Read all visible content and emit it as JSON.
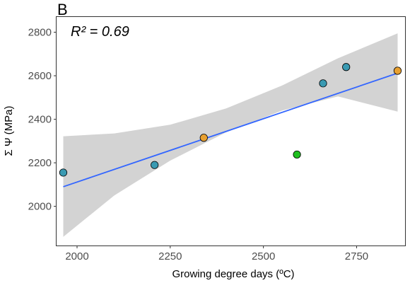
{
  "panel_label": "B",
  "chart_data": {
    "type": "scatter",
    "title": "",
    "xlabel": "Growing degree days (ºC)",
    "ylabel": "Σ Ψ (MPa)",
    "xlim": [
      1945,
      2880
    ],
    "ylim": [
      1820,
      2870
    ],
    "x_ticks": [
      2000,
      2250,
      2500,
      2750
    ],
    "y_ticks": [
      2000,
      2200,
      2400,
      2600,
      2800
    ],
    "grid": false,
    "legend": "none",
    "annotation": "R² = 0.69",
    "points": [
      {
        "x": 1963,
        "y": 2155,
        "color": "#3a9ab2"
      },
      {
        "x": 2208,
        "y": 2190,
        "color": "#3a9ab2"
      },
      {
        "x": 2340,
        "y": 2315,
        "color": "#e8a030"
      },
      {
        "x": 2590,
        "y": 2238,
        "color": "#1fbf1f"
      },
      {
        "x": 2660,
        "y": 2565,
        "color": "#3a9ab2"
      },
      {
        "x": 2722,
        "y": 2640,
        "color": "#3a9ab2"
      },
      {
        "x": 2860,
        "y": 2623,
        "color": "#e8a030"
      }
    ],
    "fit_line": {
      "x": [
        1963,
        2860
      ],
      "y": [
        2090,
        2612
      ],
      "color": "#3366ff"
    },
    "confidence_band": {
      "color": "#d3d3d3",
      "x": [
        1963,
        2100,
        2250,
        2400,
        2550,
        2700,
        2860
      ],
      "lower": [
        1860,
        2050,
        2210,
        2340,
        2440,
        2505,
        2435
      ],
      "upper": [
        2322,
        2335,
        2375,
        2450,
        2555,
        2680,
        2795
      ]
    }
  }
}
